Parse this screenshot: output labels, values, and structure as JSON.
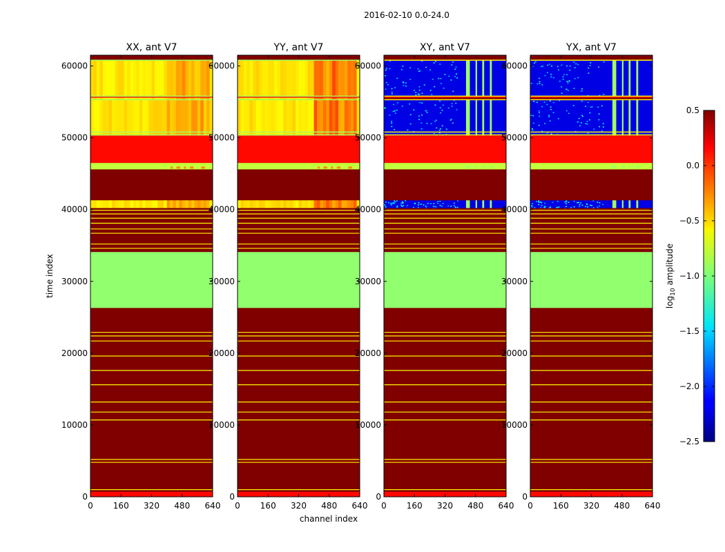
{
  "chart_data": {
    "type": "heatmap",
    "suptitle": "2016-02-10 0.0-24.0",
    "xlabel": "channel index",
    "ylabel": "time index",
    "xlim": [
      0,
      640
    ],
    "ylim": [
      0,
      61500
    ],
    "x_ticks": [
      0,
      160,
      320,
      480,
      640
    ],
    "y_ticks": [
      0,
      10000,
      20000,
      30000,
      40000,
      50000,
      60000
    ],
    "colorbar": {
      "label": "log10 amplitude",
      "label_base": "log",
      "label_sub": "10",
      "label_rest": " amplitude",
      "min": -2.5,
      "max": 0.5,
      "ticks": [
        -2.5,
        -2.0,
        -1.5,
        -1.0,
        -0.5,
        0.0,
        0.5
      ],
      "tick_labels": [
        "−2.5",
        "−2.0",
        "−1.5",
        "−1.0",
        "−0.5",
        "0.0",
        "0.5"
      ],
      "colormap": "jet"
    },
    "panels": [
      {
        "title": "XX, ant V7",
        "variant": "parallel",
        "hot_strength": 0.25
      },
      {
        "title": "YY, ant V7",
        "variant": "parallel",
        "hot_strength": 0.45
      },
      {
        "title": "XY, ant V7",
        "variant": "cross",
        "hot_strength": 0.0
      },
      {
        "title": "YX, ant V7",
        "variant": "cross",
        "hot_strength": 0.0
      }
    ],
    "common_bands": [
      {
        "t0": 0,
        "t1": 700,
        "value": 0.1
      },
      {
        "t0": 700,
        "t1": 26300,
        "value": 0.5
      },
      {
        "t0": 26300,
        "t1": 34100,
        "value": -0.95
      },
      {
        "t0": 34100,
        "t1": 40200,
        "value": 0.5
      },
      {
        "t0": 41300,
        "t1": 45600,
        "value": 0.5
      },
      {
        "t0": 45600,
        "t1": 46500,
        "value": -0.8
      },
      {
        "t0": 46500,
        "t1": 50300,
        "value": 0.1
      }
    ],
    "common_lines": [
      1000,
      4800,
      5200,
      10700,
      11800,
      13200,
      15600,
      17600,
      19600,
      21700,
      22400,
      22900,
      34600,
      35200,
      36700,
      37300,
      38100,
      38800,
      39400,
      39900
    ],
    "parallel_active": {
      "segments": [
        [
          40200,
          41300
        ],
        [
          50300,
          55300
        ],
        [
          55300,
          60800
        ]
      ],
      "base_value": -0.55,
      "hot_channel_range": [
        400,
        620
      ],
      "separator_lines": [
        55300,
        55800,
        60800,
        50400,
        50800
      ]
    },
    "cross_active": {
      "segments": [
        [
          40200,
          41300
        ],
        [
          50300,
          55300
        ],
        [
          55800,
          60800
        ]
      ],
      "base_value": -2.2,
      "bright_channels": [
        [
          430,
          450
        ],
        [
          480,
          488
        ],
        [
          515,
          525
        ],
        [
          555,
          565
        ]
      ],
      "bright_value": -0.9,
      "separator_lines": [
        55300,
        55800,
        60800,
        50400,
        50800
      ]
    }
  }
}
